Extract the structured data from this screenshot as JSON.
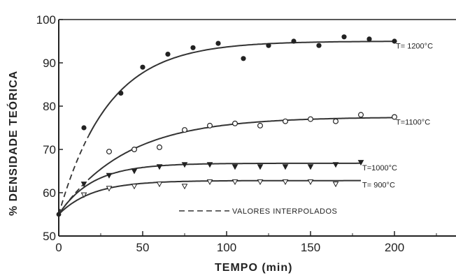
{
  "chart_data": {
    "type": "scatter",
    "title": "",
    "xlabel": "TEMPO (min)",
    "ylabel": "% DENSIDADE TEÓRICA",
    "xlim": [
      0,
      230
    ],
    "ylim": [
      50,
      100
    ],
    "x_ticks": [
      "0",
      "50",
      "100",
      "150",
      "200"
    ],
    "y_ticks": [
      "50",
      "60",
      "70",
      "80",
      "90",
      "100"
    ],
    "grid": false,
    "legend": {
      "position": "bottom-right",
      "entries": [
        {
          "label": "VALORES INTERPOLADOS",
          "style": "dashed"
        }
      ]
    },
    "series": [
      {
        "name": "T= 1200°C",
        "marker": "filled-circle",
        "x": [
          15,
          37,
          50,
          65,
          80,
          95,
          110,
          125,
          140,
          155,
          170,
          185,
          200
        ],
        "y": [
          75,
          83,
          89,
          92,
          93.5,
          94.5,
          91,
          94,
          95,
          94,
          96,
          95.5,
          95
        ],
        "fit": {
          "kind": "saturating",
          "y0": 55,
          "ymax": 95,
          "rate": 0.034,
          "x_end": 200,
          "dashed_until": 18
        }
      },
      {
        "name": "T=1100°C",
        "marker": "open-circle",
        "x": [
          30,
          45,
          60,
          75,
          90,
          105,
          120,
          135,
          150,
          165,
          180,
          200
        ],
        "y": [
          69.5,
          70,
          70.5,
          74.5,
          75.5,
          76,
          75.5,
          76.5,
          77,
          76.5,
          78,
          77.5
        ],
        "fit": {
          "kind": "saturating",
          "y0": 55,
          "ymax": 77.5,
          "rate": 0.025,
          "x_end": 200,
          "dashed_until": 18
        }
      },
      {
        "name": "T=1000°C",
        "marker": "filled-triangle-down",
        "x": [
          15,
          30,
          45,
          60,
          75,
          90,
          105,
          120,
          135,
          150,
          165,
          180
        ],
        "y": [
          62,
          64,
          65,
          66,
          66.5,
          66.5,
          66,
          66,
          66,
          66,
          66.5,
          67
        ],
        "fit": {
          "kind": "saturating",
          "y0": 55,
          "ymax": 66.8,
          "rate": 0.05,
          "x_end": 180
        }
      },
      {
        "name": "T= 900°C",
        "marker": "open-triangle-down",
        "x": [
          15,
          30,
          45,
          60,
          75,
          90,
          105,
          120,
          135,
          150,
          165
        ],
        "y": [
          59.5,
          61,
          61.5,
          62,
          61.5,
          62.5,
          62.5,
          62.5,
          62.5,
          62.5,
          62
        ],
        "fit": {
          "kind": "saturating",
          "y0": 55,
          "ymax": 62.8,
          "rate": 0.05,
          "x_end": 180
        }
      }
    ]
  }
}
